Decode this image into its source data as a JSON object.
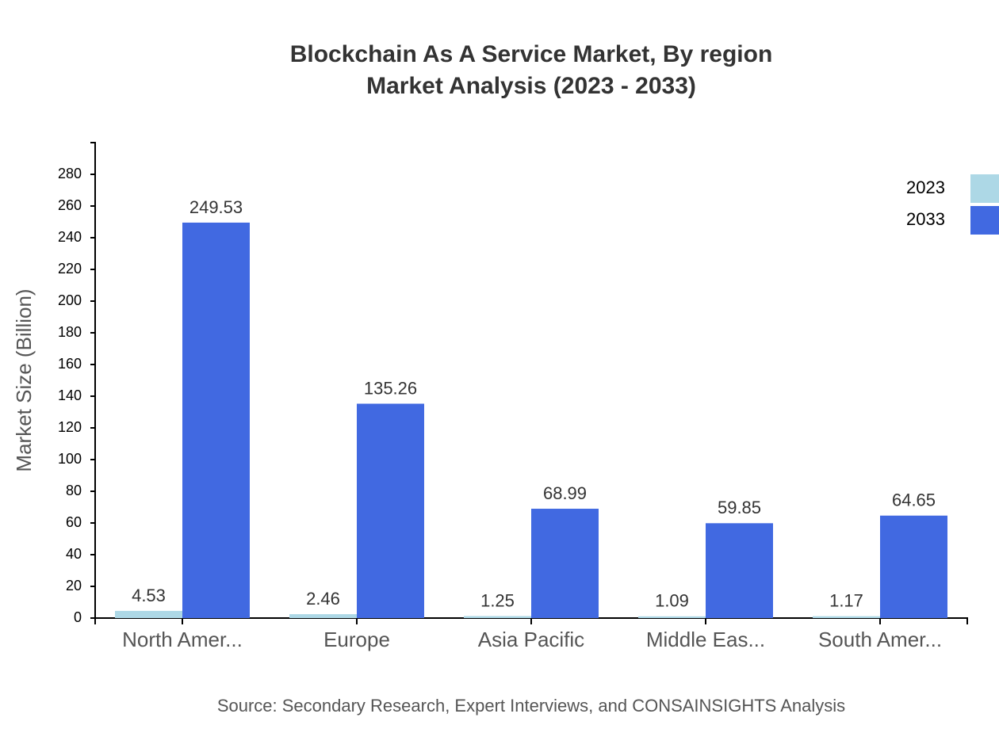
{
  "chart_data": {
    "type": "bar",
    "title": "Blockchain As A Service Market, By region",
    "subtitle": "Market Analysis (2023 - 2033)",
    "y_label": "Market Size (Billion)",
    "source": "Source: Secondary Research, Expert Interviews, and CONSAINSIGHTS Analysis",
    "categories": [
      "North Amer...",
      "Europe",
      "Asia Pacific",
      "Middle Eas...",
      "South Amer..."
    ],
    "series": [
      {
        "name": "2023",
        "color": "#add8e6",
        "values": [
          4.53,
          2.46,
          1.25,
          1.09,
          1.17
        ]
      },
      {
        "name": "2033",
        "color": "#4169e1",
        "values": [
          249.53,
          135.26,
          68.99,
          59.85,
          64.65
        ]
      }
    ],
    "ylim": [
      0,
      300
    ],
    "yticks": [
      0,
      20,
      40,
      60,
      80,
      100,
      120,
      140,
      160,
      180,
      200,
      220,
      240,
      260,
      280
    ],
    "legend": "top-right"
  }
}
